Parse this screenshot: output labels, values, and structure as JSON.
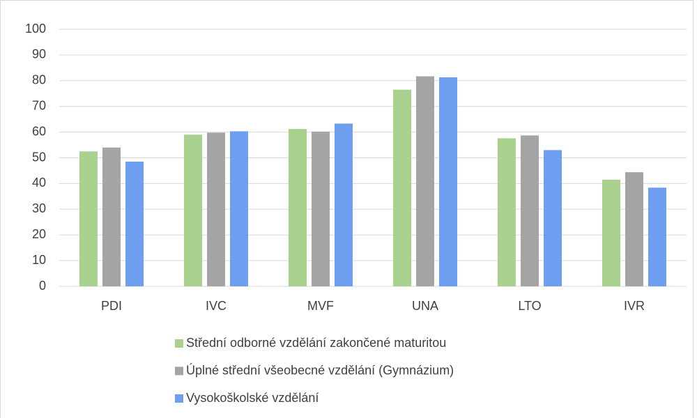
{
  "chart_data": {
    "type": "bar",
    "categories": [
      "PDI",
      "IVC",
      "MVF",
      "UNA",
      "LTO",
      "IVR"
    ],
    "series": [
      {
        "name": "Střední odborné vzdělání zakončené maturitou",
        "color": "#a9d18e",
        "values": [
          52.5,
          59,
          61.2,
          76.5,
          57.6,
          41.5
        ]
      },
      {
        "name": "Úplné střední všeobecné vzdělání (Gymnázium)",
        "color": "#a5a5a5",
        "values": [
          54,
          59.8,
          60.2,
          81.7,
          58.7,
          44.4
        ]
      },
      {
        "name": "Vysokoškolské vzdělání",
        "color": "#6d9ef0",
        "values": [
          48.5,
          60.3,
          63.3,
          81.3,
          53,
          38.4
        ]
      }
    ],
    "ylim": [
      0,
      100
    ],
    "yticks": [
      0,
      10,
      20,
      30,
      40,
      50,
      60,
      70,
      80,
      90,
      100
    ],
    "grid": true,
    "legend": "bottom"
  }
}
